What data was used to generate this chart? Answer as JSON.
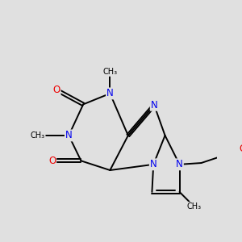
{
  "bg_color": "#e0e0e0",
  "N_color": "#0000ee",
  "O_color": "#ee0000",
  "bond_color": "#000000",
  "bond_lw": 1.4,
  "dbl_sep": 0.1,
  "figsize": [
    3.0,
    3.0
  ],
  "dpi": 100,
  "xlim": [
    0,
    10
  ],
  "ylim": [
    0,
    10
  ]
}
